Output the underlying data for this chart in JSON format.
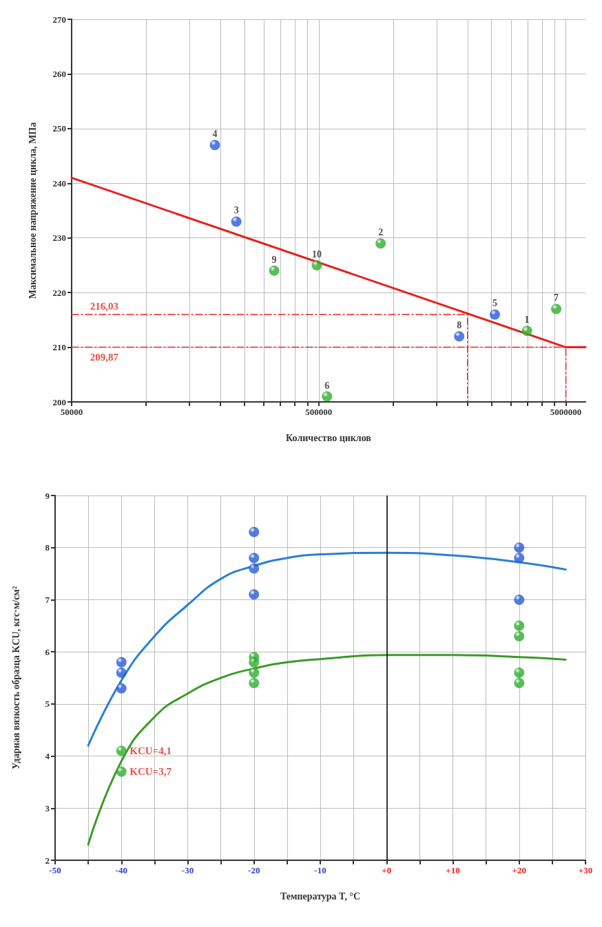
{
  "chart_data": [
    {
      "type": "scatter",
      "xlabel": "Количество циклов",
      "ylabel": "Максимальное напряжение цикла, МПа",
      "log": "x",
      "grid": true,
      "marker": "circle",
      "xlim": [
        50000,
        6000000
      ],
      "ylim": [
        200,
        270
      ],
      "yticks": [
        200,
        210,
        220,
        230,
        240,
        250,
        260,
        270
      ],
      "xticks": [
        50000,
        {
          "value": 100000,
          "label": null
        },
        {
          "value": 150000,
          "label": null
        },
        {
          "value": 200000,
          "label": null
        },
        {
          "value": 250000,
          "label": null
        },
        {
          "value": 300000,
          "label": null
        },
        {
          "value": 350000,
          "label": null
        },
        {
          "value": 400000,
          "label": null
        },
        {
          "value": 450000,
          "label": null
        },
        500000,
        {
          "value": 1000000,
          "label": null
        },
        {
          "value": 1500000,
          "label": null
        },
        {
          "value": 2000000,
          "label": null
        },
        {
          "value": 2500000,
          "label": null
        },
        {
          "value": 3000000,
          "label": null
        },
        {
          "value": 3500000,
          "label": null
        },
        {
          "value": 4000000,
          "label": null
        },
        {
          "value": 4500000,
          "label": null
        },
        5000000
      ],
      "series": [
        {
          "type": "line",
          "marker": "none",
          "color": "#e8201c",
          "x": [
            50000,
            5000000,
            6000000
          ],
          "values": [
            241,
            210,
            210
          ]
        },
        {
          "type": "line",
          "marker": "none",
          "color": "#e8201c",
          "line_style": "dashed",
          "x": [
            50000,
            2000000,
            2000000
          ],
          "values": [
            216,
            216,
            200
          ]
        },
        {
          "type": "line",
          "marker": "none",
          "color": "#e8201c",
          "line_style": "dashed",
          "x": [
            50000,
            5000000,
            5000000
          ],
          "values": [
            210,
            210,
            200
          ]
        },
        {
          "color": "#2a5bd7",
          "x": [
            190000,
            232000,
            1850000,
            2580000
          ],
          "values": [
            247,
            233,
            212,
            216
          ]
        },
        {
          "color": "#2fae2f",
          "x": [
            330000,
            491000,
            540000,
            890000,
            3480000,
            4570000
          ],
          "values": [
            224,
            225,
            201,
            229,
            213,
            217
          ]
        }
      ],
      "annotations": [
        {
          "text": "216,03",
          "x": 55000,
          "y": 216
        },
        {
          "text": "209,87",
          "x": 55000,
          "y": 210
        },
        {
          "text": "4",
          "x": 190000,
          "y": 247
        },
        {
          "text": "3",
          "x": 232000,
          "y": 233
        },
        {
          "text": "8",
          "x": 1850000,
          "y": 212
        },
        {
          "text": "5",
          "x": 2580000,
          "y": 216
        },
        {
          "text": "9",
          "x": 330000,
          "y": 224
        },
        {
          "text": "10",
          "x": 491000,
          "y": 225
        },
        {
          "text": "6",
          "x": 540000,
          "y": 201
        },
        {
          "text": "2",
          "x": 890000,
          "y": 229
        },
        {
          "text": "1",
          "x": 3480000,
          "y": 213
        },
        {
          "text": "7",
          "x": 4570000,
          "y": 217
        }
      ]
    },
    {
      "type": "scatter",
      "xlabel": "Температура T, °C",
      "ylabel": "Ударная вязкость образца KCU, кгс·м/см²",
      "grid": true,
      "marker": "circle",
      "xlim": [
        -50,
        30
      ],
      "ylim": [
        2,
        9
      ],
      "yticks": [
        2,
        3,
        4,
        5,
        6,
        7,
        8,
        9
      ],
      "xticks": [
        -50,
        {
          "value": -45,
          "label": null
        },
        -40,
        {
          "value": -35,
          "label": null
        },
        -30,
        {
          "value": -25,
          "label": null
        },
        -20,
        {
          "value": -15,
          "label": null
        },
        -10,
        {
          "value": -5,
          "label": null
        },
        {
          "value": 0,
          "label": "+0"
        },
        {
          "value": 5,
          "label": null
        },
        {
          "value": 10,
          "label": "+10"
        },
        {
          "value": 15,
          "label": null
        },
        {
          "value": 20,
          "label": "+20"
        },
        {
          "value": 25,
          "label": null
        },
        {
          "value": 30,
          "label": "+30"
        }
      ],
      "ref_lines": [
        {
          "axis": "x",
          "value": 0,
          "color": "#000000"
        }
      ],
      "series": [
        {
          "type": "line",
          "marker": "none",
          "color": "#2a7fd4",
          "x": [
            -45,
            -40,
            -35,
            -30,
            -25,
            -20,
            -15,
            -10,
            0,
            10,
            20,
            27
          ],
          "values": [
            4.2,
            5.45,
            6.3,
            6.9,
            7.4,
            7.65,
            7.8,
            7.87,
            7.9,
            7.85,
            7.72,
            7.58
          ]
        },
        {
          "type": "line",
          "marker": "none",
          "color": "#3c9a28",
          "x": [
            -45,
            -40,
            -35,
            -30,
            -25,
            -20,
            -15,
            -10,
            0,
            10,
            20,
            27
          ],
          "values": [
            2.3,
            3.9,
            4.75,
            5.2,
            5.5,
            5.68,
            5.8,
            5.86,
            5.94,
            5.94,
            5.9,
            5.85
          ]
        },
        {
          "color": "#2a5bd7",
          "x": [
            -40,
            -40,
            -40,
            -20,
            -20,
            -20,
            -20,
            20,
            20,
            20
          ],
          "values": [
            5.8,
            5.6,
            5.3,
            8.3,
            7.8,
            7.6,
            7.1,
            8.0,
            7.8,
            7.0
          ]
        },
        {
          "color": "#2fae2f",
          "x": [
            -40,
            -40,
            -20,
            -20,
            -20,
            -20,
            20,
            20,
            20,
            20
          ],
          "values": [
            4.1,
            3.7,
            5.9,
            5.8,
            5.6,
            5.4,
            6.5,
            6.3,
            5.6,
            5.4
          ]
        }
      ],
      "annotations": [
        {
          "text": "KCU=4,1",
          "x": -40,
          "y": 4.1
        },
        {
          "text": "KCU=3,7",
          "x": -40,
          "y": 3.7
        }
      ]
    }
  ]
}
